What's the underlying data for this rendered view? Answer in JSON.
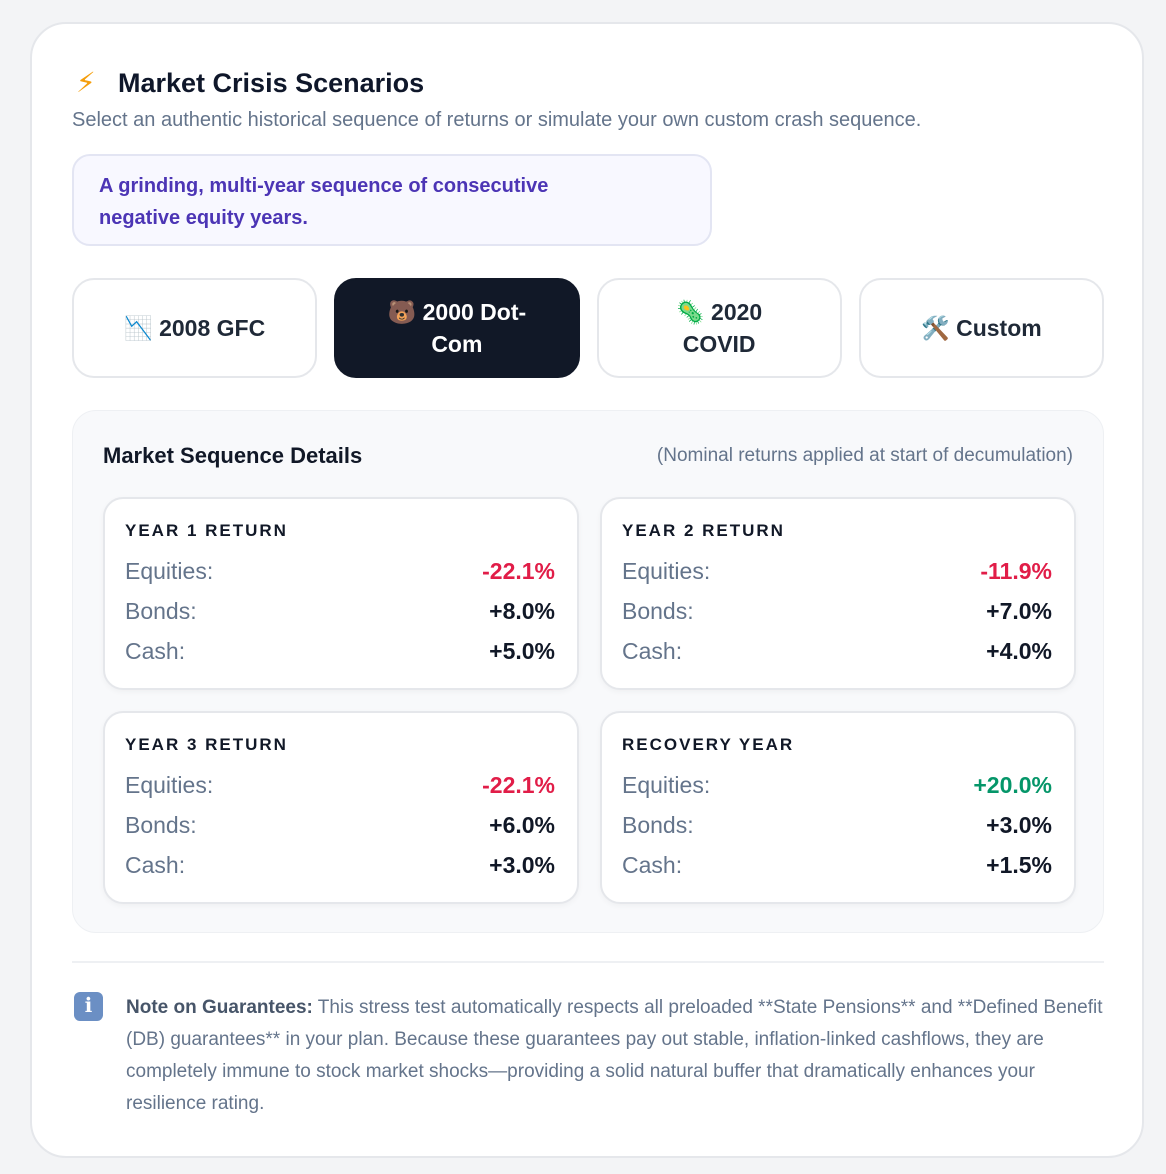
{
  "header": {
    "icon": "⚡",
    "title": "Market Crisis Scenarios",
    "subtitle": "Select an authentic historical sequence of returns or simulate your own custom crash sequence."
  },
  "description": "A grinding, multi-year sequence of consecutive negative equity years.",
  "tabs": {
    "selected": 1,
    "items": [
      {
        "icon": "📉",
        "label": "2008 GFC"
      },
      {
        "icon": "🐻",
        "label": "2000 Dot-Com"
      },
      {
        "icon": "🦠",
        "label": "2020 COVID"
      },
      {
        "icon": "🛠️",
        "label": "Custom"
      }
    ]
  },
  "details": {
    "title": "Market Sequence Details",
    "note": "(Nominal returns applied at start of decumulation)",
    "cards": [
      {
        "title": "YEAR 1 RETURN",
        "rows": [
          {
            "label": "Equities:",
            "value": "-22.1%",
            "color": "#e11d48"
          },
          {
            "label": "Bonds:",
            "value": "+8.0%"
          },
          {
            "label": "Cash:",
            "value": "+5.0%"
          }
        ]
      },
      {
        "title": "YEAR 2 RETURN",
        "rows": [
          {
            "label": "Equities:",
            "value": "-11.9%",
            "color": "#e11d48"
          },
          {
            "label": "Bonds:",
            "value": "+7.0%"
          },
          {
            "label": "Cash:",
            "value": "+4.0%"
          }
        ]
      },
      {
        "title": "YEAR 3 RETURN",
        "rows": [
          {
            "label": "Equities:",
            "value": "-22.1%",
            "color": "#e11d48"
          },
          {
            "label": "Bonds:",
            "value": "+6.0%"
          },
          {
            "label": "Cash:",
            "value": "+3.0%"
          }
        ]
      },
      {
        "title": "RECOVERY YEAR",
        "rows": [
          {
            "label": "Equities:",
            "value": "+20.0%",
            "color": "#059669"
          },
          {
            "label": "Bonds:",
            "value": "+3.0%"
          },
          {
            "label": "Cash:",
            "value": "+1.5%"
          }
        ]
      }
    ]
  },
  "footnote": {
    "icon": "ℹ",
    "label": "Note on Guarantees:",
    "text": " This stress test automatically respects all preloaded **State Pensions** and **Defined Benefit (DB) guarantees** in your plan. Because these guarantees pay out stable, inflation-linked cashflows, they are completely immune to stock market shocks—providing a solid natural buffer that dramatically enhances your resilience rating."
  }
}
